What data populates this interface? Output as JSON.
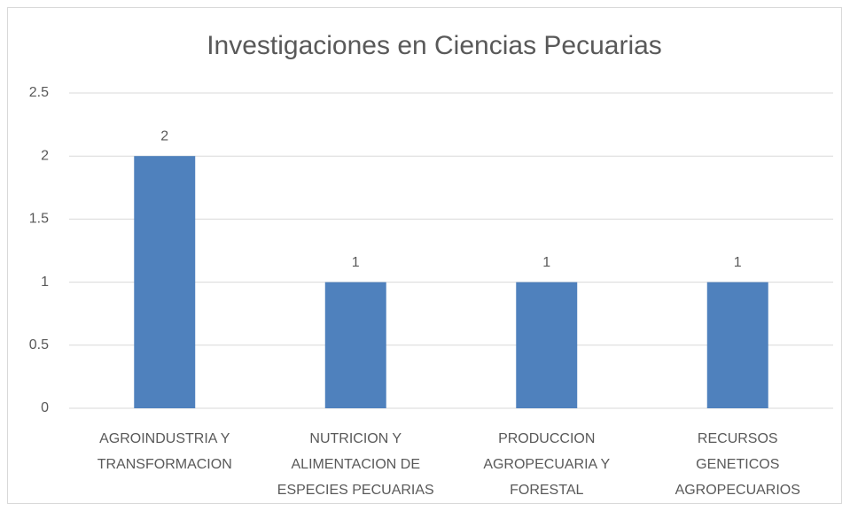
{
  "chart_data": {
    "type": "bar",
    "title": "Investigaciones en Ciencias Pecuarias",
    "categories": [
      "AGROINDUSTRIA Y\nTRANSFORMACION",
      "NUTRICION Y\nALIMENTACION DE\nESPECIES PECUARIAS",
      "PRODUCCION\nAGROPECUARIA Y\nFORESTAL",
      "RECURSOS\nGENETICOS\nAGROPECUARIOS"
    ],
    "values": [
      2,
      1,
      1,
      1
    ],
    "color": "#4f81bd",
    "ylim": [
      0,
      2.5
    ],
    "yticks": [
      0,
      0.5,
      1,
      1.5,
      2,
      2.5
    ],
    "grid": true
  }
}
